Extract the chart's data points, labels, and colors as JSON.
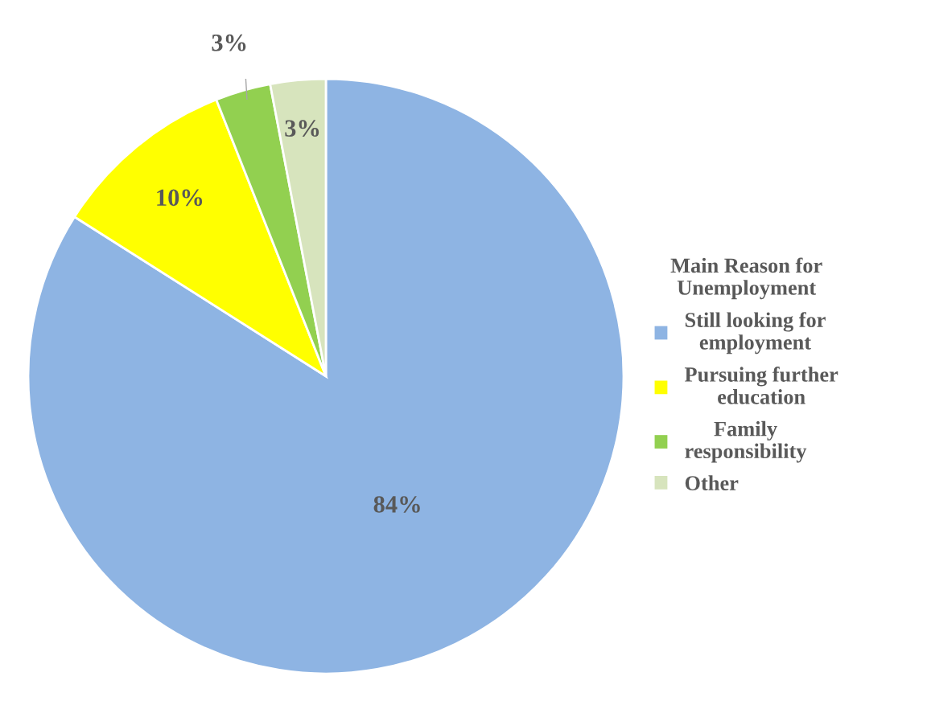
{
  "chart_data": {
    "type": "pie",
    "legend_title": "Main Reason for Unemployment",
    "categories": [
      "Still looking for employment",
      "Pursuing further education",
      "Family responsibility",
      "Other"
    ],
    "values": [
      84,
      10,
      3,
      3
    ],
    "colors": [
      "#8eb4e3",
      "#ffff00",
      "#92d050",
      "#d7e4bd"
    ],
    "value_labels": [
      "84%",
      "10%",
      "3%",
      "3%"
    ],
    "legend": "right"
  }
}
